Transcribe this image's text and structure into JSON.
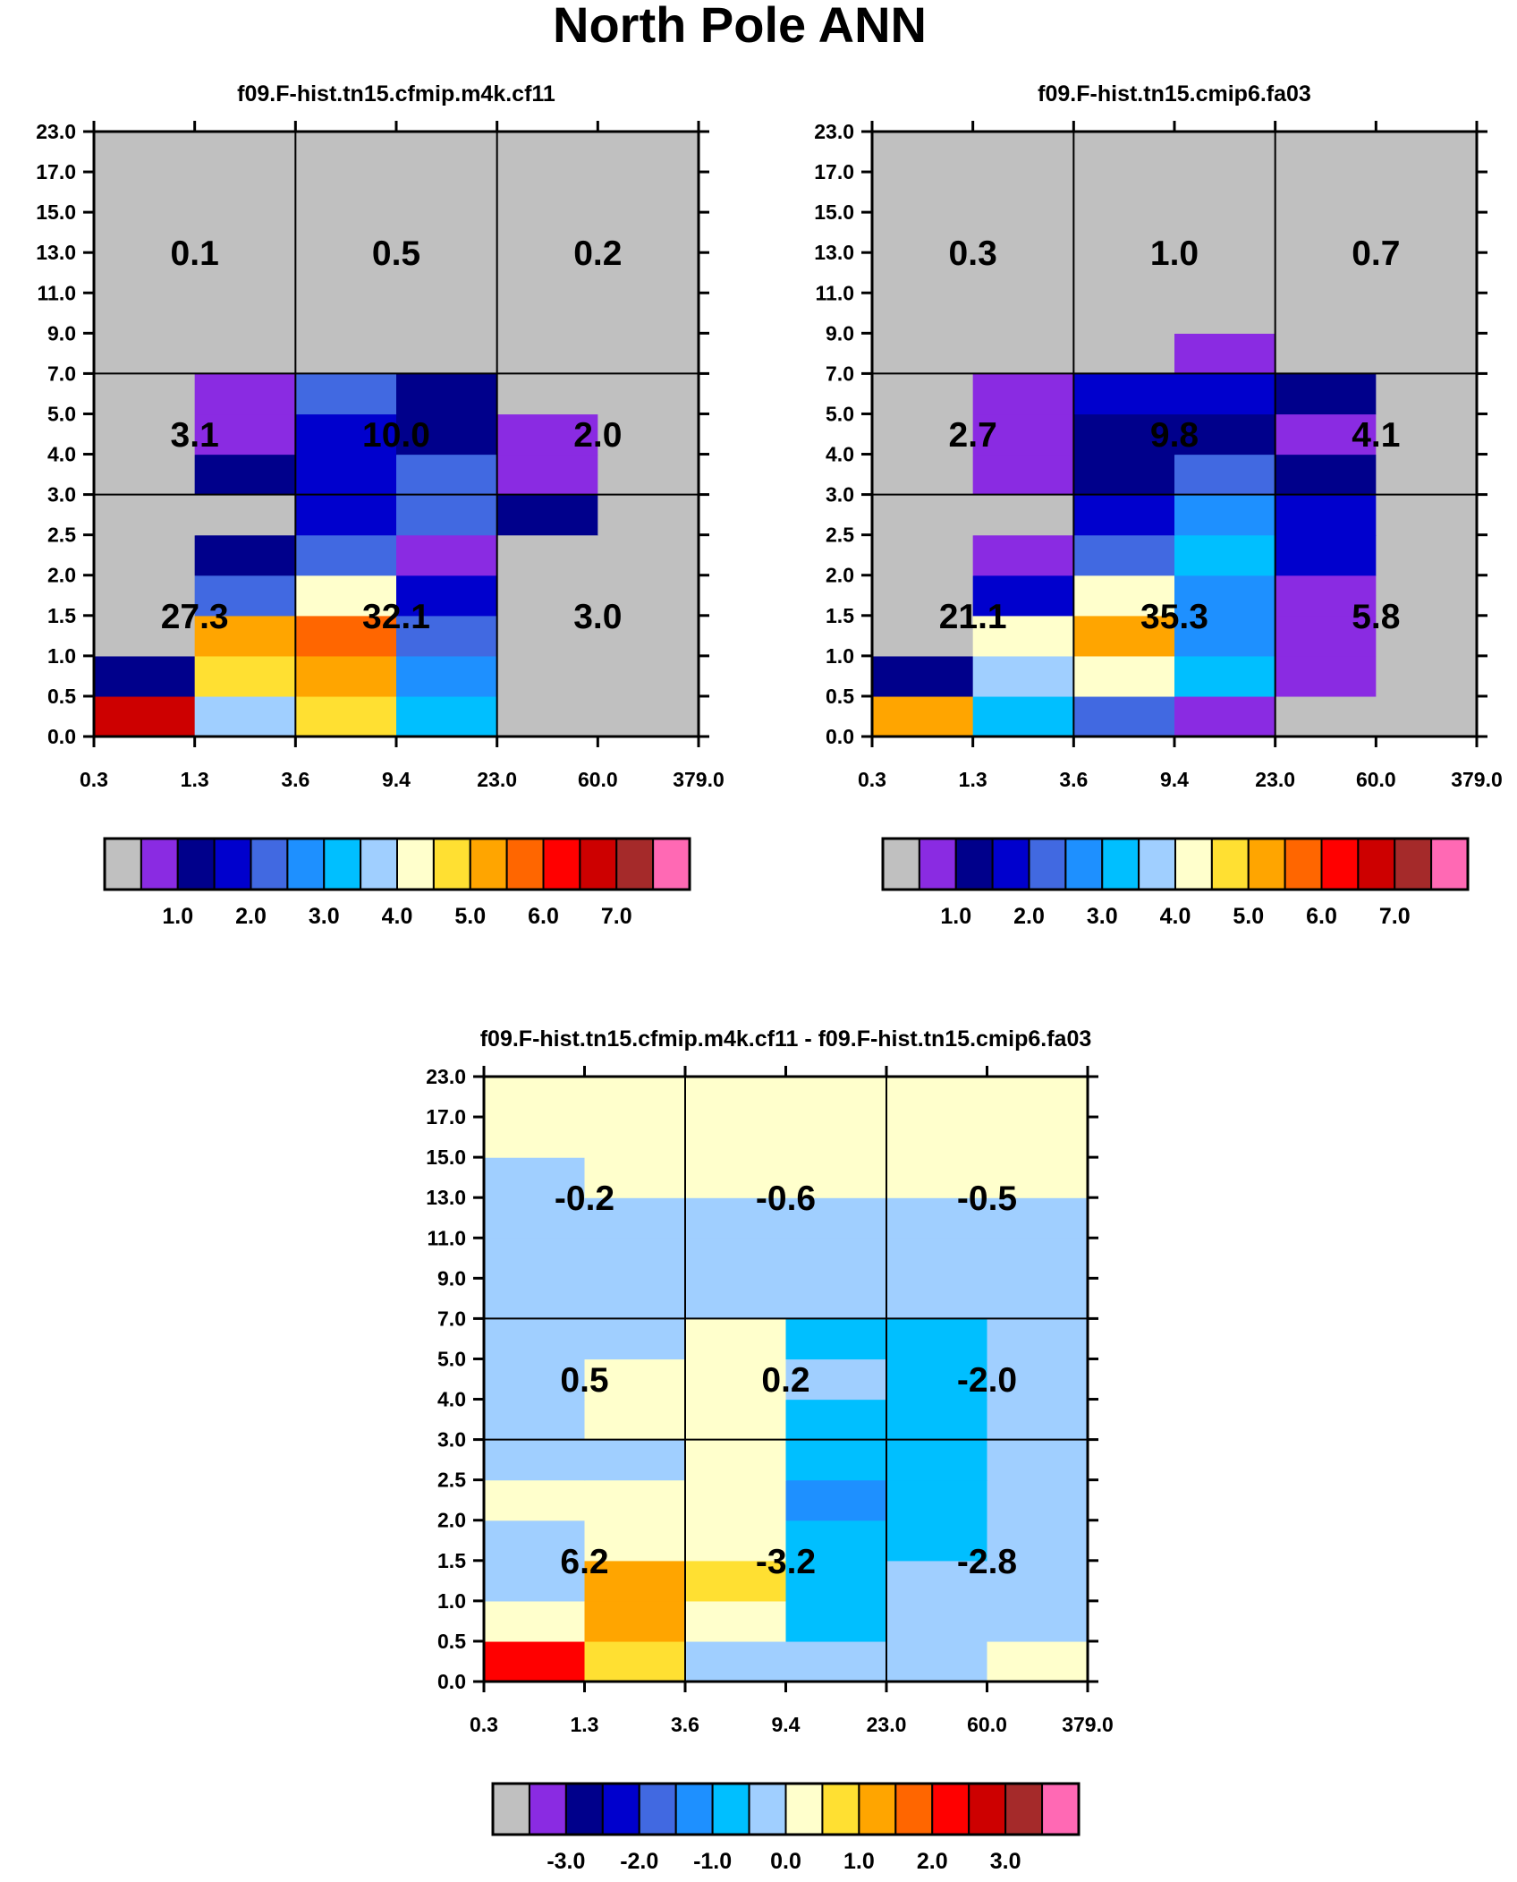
{
  "title": "North Pole ANN",
  "colors": {
    "abs_palette": [
      "#c0c0c0",
      "#8a2be2",
      "#00008b",
      "#0000cd",
      "#4169e1",
      "#1e90ff",
      "#00bfff",
      "#a0cfff",
      "#ffffcc",
      "#ffe032",
      "#ffa500",
      "#ff6600",
      "#ff0000",
      "#cd0000",
      "#a52a2a",
      "#ff69b4"
    ],
    "diff_palette": [
      "#c0c0c0",
      "#8a2be2",
      "#00008b",
      "#0000cd",
      "#4169e1",
      "#1e90ff",
      "#00bfff",
      "#a0cfff",
      "#ffffcc",
      "#ffe032",
      "#ffa500",
      "#ff6600",
      "#ff0000",
      "#cd0000",
      "#a52a2a",
      "#ff69b4"
    ]
  },
  "chart_data": [
    {
      "type": "heatmap",
      "id": "cf11",
      "title": "f09.F-hist.tn15.cfmip.m4k.cf11",
      "xlabel": "",
      "ylabel": "",
      "x_ticks": [
        "0.3",
        "1.3",
        "3.6",
        "9.4",
        "23.0",
        "60.0",
        "379.0"
      ],
      "y_ticks": [
        "0.0",
        "0.5",
        "1.0",
        "1.5",
        "2.0",
        "2.5",
        "3.0",
        "4.0",
        "5.0",
        "7.0",
        "9.0",
        "11.0",
        "13.0",
        "15.0",
        "17.0",
        "23.0"
      ],
      "cells": [
        [
          13,
          7,
          9,
          6,
          0,
          0
        ],
        [
          2,
          9,
          10,
          5,
          0,
          0
        ],
        [
          0,
          10,
          11,
          4,
          0,
          0
        ],
        [
          0,
          4,
          8,
          3,
          0,
          0
        ],
        [
          0,
          2,
          4,
          1,
          0,
          0
        ],
        [
          0,
          0,
          3,
          4,
          2,
          0
        ],
        [
          0,
          2,
          3,
          4,
          1,
          0
        ],
        [
          0,
          1,
          3,
          2,
          1,
          0
        ],
        [
          0,
          1,
          4,
          2,
          0,
          0
        ],
        [
          0,
          0,
          0,
          0,
          0,
          0
        ],
        [
          0,
          0,
          0,
          0,
          0,
          0
        ],
        [
          0,
          0,
          0,
          0,
          0,
          0
        ],
        [
          0,
          0,
          0,
          0,
          0,
          0
        ],
        [
          0,
          0,
          0,
          0,
          0,
          0
        ],
        [
          0,
          0,
          0,
          0,
          0,
          0
        ]
      ],
      "group_labels": [
        [
          "27.3",
          "32.1",
          "3.0"
        ],
        [
          "3.1",
          "10.0",
          "2.0"
        ],
        [
          "0.1",
          "0.5",
          "0.2"
        ]
      ],
      "colorbar": {
        "labels": [
          "1.0",
          "2.0",
          "3.0",
          "4.0",
          "5.0",
          "6.0",
          "7.0"
        ]
      }
    },
    {
      "type": "heatmap",
      "id": "fa03",
      "title": "f09.F-hist.tn15.cmip6.fa03",
      "xlabel": "",
      "ylabel": "",
      "x_ticks": [
        "0.3",
        "1.3",
        "3.6",
        "9.4",
        "23.0",
        "60.0",
        "379.0"
      ],
      "y_ticks": [
        "0.0",
        "0.5",
        "1.0",
        "1.5",
        "2.0",
        "2.5",
        "3.0",
        "4.0",
        "5.0",
        "7.0",
        "9.0",
        "11.0",
        "13.0",
        "15.0",
        "17.0",
        "23.0"
      ],
      "cells": [
        [
          10,
          6,
          4,
          1,
          0,
          0
        ],
        [
          2,
          7,
          8,
          6,
          1,
          0
        ],
        [
          0,
          8,
          10,
          5,
          1,
          0
        ],
        [
          0,
          3,
          8,
          5,
          1,
          0
        ],
        [
          0,
          1,
          4,
          6,
          3,
          0
        ],
        [
          0,
          0,
          3,
          5,
          3,
          0
        ],
        [
          0,
          1,
          2,
          4,
          2,
          0
        ],
        [
          0,
          1,
          2,
          2,
          1,
          0
        ],
        [
          0,
          1,
          3,
          3,
          2,
          0
        ],
        [
          0,
          0,
          0,
          1,
          0,
          0
        ],
        [
          0,
          0,
          0,
          0,
          0,
          0
        ],
        [
          0,
          0,
          0,
          0,
          0,
          0
        ],
        [
          0,
          0,
          0,
          0,
          0,
          0
        ],
        [
          0,
          0,
          0,
          0,
          0,
          0
        ],
        [
          0,
          0,
          0,
          0,
          0,
          0
        ]
      ],
      "group_labels": [
        [
          "21.1",
          "35.3",
          "5.8"
        ],
        [
          "2.7",
          "9.8",
          "4.1"
        ],
        [
          "0.3",
          "1.0",
          "0.7"
        ]
      ],
      "colorbar": {
        "labels": [
          "1.0",
          "2.0",
          "3.0",
          "4.0",
          "5.0",
          "6.0",
          "7.0"
        ]
      }
    },
    {
      "type": "heatmap",
      "id": "diff",
      "title": "f09.F-hist.tn15.cfmip.m4k.cf11 - f09.F-hist.tn15.cmip6.fa03",
      "xlabel": "",
      "ylabel": "",
      "x_ticks": [
        "0.3",
        "1.3",
        "3.6",
        "9.4",
        "23.0",
        "60.0",
        "379.0"
      ],
      "y_ticks": [
        "0.0",
        "0.5",
        "1.0",
        "1.5",
        "2.0",
        "2.5",
        "3.0",
        "4.0",
        "5.0",
        "7.0",
        "9.0",
        "11.0",
        "13.0",
        "15.0",
        "17.0",
        "23.0"
      ],
      "cells": [
        [
          12,
          9,
          7,
          7,
          7,
          8
        ],
        [
          8,
          10,
          8,
          6,
          7,
          7
        ],
        [
          7,
          10,
          9,
          6,
          7,
          7
        ],
        [
          7,
          8,
          8,
          6,
          6,
          7
        ],
        [
          8,
          8,
          8,
          5,
          6,
          7
        ],
        [
          7,
          7,
          8,
          6,
          6,
          7
        ],
        [
          7,
          8,
          8,
          6,
          6,
          7
        ],
        [
          7,
          8,
          8,
          7,
          6,
          7
        ],
        [
          7,
          7,
          8,
          6,
          6,
          7
        ],
        [
          7,
          7,
          7,
          7,
          7,
          7
        ],
        [
          7,
          7,
          7,
          7,
          7,
          7
        ],
        [
          7,
          7,
          7,
          7,
          7,
          7
        ],
        [
          7,
          8,
          8,
          8,
          8,
          8
        ],
        [
          8,
          8,
          8,
          8,
          8,
          8
        ],
        [
          8,
          8,
          8,
          8,
          8,
          8
        ]
      ],
      "group_labels": [
        [
          "6.2",
          "-3.2",
          "-2.8"
        ],
        [
          "0.5",
          "0.2",
          "-2.0"
        ],
        [
          "-0.2",
          "-0.6",
          "-0.5"
        ]
      ],
      "colorbar": {
        "labels": [
          "-3.0",
          "-2.0",
          "-1.0",
          "0.0",
          "1.0",
          "2.0",
          "3.0"
        ]
      }
    }
  ]
}
